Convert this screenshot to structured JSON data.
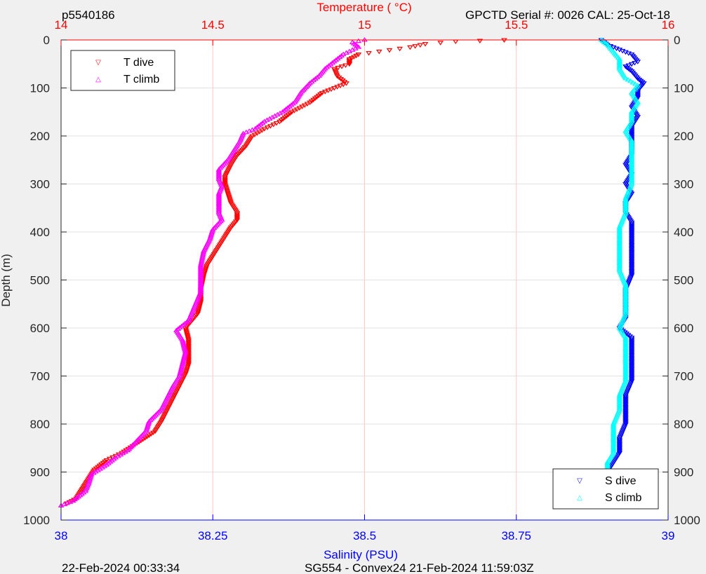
{
  "header": {
    "profile_id": "p5540186",
    "serial_info": "GPCTD Serial #: 0026 CAL: 25-Oct-18"
  },
  "footer": {
    "timestamp": "22-Feb-2024 00:33:34",
    "mission_info": "SG554 - Convex24 21-Feb-2024 11:59:03Z"
  },
  "colors": {
    "t_dive": "#ff0000",
    "t_climb": "#ff00ff",
    "s_dive": "#0000ff",
    "s_climb": "#00ffff",
    "temperature_axis": "#ff0000",
    "salinity_axis": "#0000ff",
    "grid": "#ffc8c8"
  },
  "chart_data": {
    "type": "scatter",
    "title": "",
    "ylabel": "Depth (m)",
    "y_reversed": true,
    "ylim": [
      0,
      1000
    ],
    "y_ticks": [
      0,
      100,
      200,
      300,
      400,
      500,
      600,
      700,
      800,
      900,
      1000
    ],
    "top_axis": {
      "label": "Temperature (    °C)",
      "lim": [
        14,
        16
      ],
      "ticks": [
        14,
        14.5,
        15,
        15.5,
        16
      ],
      "tick_labels": [
        "14",
        "14.5",
        "15",
        "15.5",
        "16"
      ]
    },
    "bottom_axis": {
      "label": "Salinity (PSU)",
      "lim": [
        38,
        39
      ],
      "ticks": [
        38,
        38.25,
        38.5,
        38.75,
        39
      ],
      "tick_labels": [
        "38",
        "38.25",
        "38.5",
        "38.75",
        "39"
      ]
    },
    "grid": true,
    "legend_temperature": {
      "placement": "top-left",
      "entries": [
        "T dive",
        "T climb"
      ]
    },
    "legend_salinity": {
      "placement": "bottom-right",
      "entries": [
        "S dive",
        "S climb"
      ]
    },
    "series": [
      {
        "name": "T dive",
        "axis": "temperature",
        "marker": "triangle-down",
        "points": [
          [
            15.46,
            0
          ],
          [
            15.3,
            3
          ],
          [
            15.2,
            8
          ],
          [
            15.15,
            15
          ],
          [
            14.98,
            30
          ],
          [
            14.95,
            40
          ],
          [
            14.95,
            50
          ],
          [
            14.9,
            60
          ],
          [
            14.91,
            75
          ],
          [
            14.94,
            90
          ],
          [
            14.9,
            100
          ],
          [
            14.86,
            110
          ],
          [
            14.82,
            130
          ],
          [
            14.76,
            150
          ],
          [
            14.72,
            170
          ],
          [
            14.67,
            185
          ],
          [
            14.63,
            200
          ],
          [
            14.61,
            220
          ],
          [
            14.58,
            240
          ],
          [
            14.56,
            260
          ],
          [
            14.54,
            285
          ],
          [
            14.54,
            300
          ],
          [
            14.55,
            320
          ],
          [
            14.56,
            340
          ],
          [
            14.58,
            360
          ],
          [
            14.58,
            375
          ],
          [
            14.56,
            390
          ],
          [
            14.54,
            410
          ],
          [
            14.51,
            440
          ],
          [
            14.48,
            470
          ],
          [
            14.47,
            490
          ],
          [
            14.46,
            520
          ],
          [
            14.46,
            545
          ],
          [
            14.45,
            570
          ],
          [
            14.41,
            600
          ],
          [
            14.42,
            625
          ],
          [
            14.42,
            655
          ],
          [
            14.42,
            675
          ],
          [
            14.41,
            695
          ],
          [
            14.39,
            720
          ],
          [
            14.37,
            745
          ],
          [
            14.35,
            770
          ],
          [
            14.33,
            795
          ],
          [
            14.31,
            815
          ],
          [
            14.25,
            840
          ],
          [
            14.2,
            860
          ],
          [
            14.15,
            875
          ],
          [
            14.11,
            895
          ],
          [
            14.09,
            915
          ],
          [
            14.07,
            935
          ],
          [
            14.05,
            955
          ],
          [
            14.02,
            965
          ]
        ]
      },
      {
        "name": "T climb",
        "axis": "temperature",
        "marker": "triangle-up",
        "points": [
          [
            15.0,
            0
          ],
          [
            14.96,
            5
          ],
          [
            14.98,
            15
          ],
          [
            14.93,
            30
          ],
          [
            14.9,
            45
          ],
          [
            14.87,
            60
          ],
          [
            14.85,
            75
          ],
          [
            14.82,
            90
          ],
          [
            14.79,
            110
          ],
          [
            14.77,
            130
          ],
          [
            14.73,
            150
          ],
          [
            14.67,
            170
          ],
          [
            14.64,
            185
          ],
          [
            14.6,
            195
          ],
          [
            14.59,
            210
          ],
          [
            14.57,
            230
          ],
          [
            14.55,
            250
          ],
          [
            14.52,
            270
          ],
          [
            14.52,
            290
          ],
          [
            14.53,
            305
          ],
          [
            14.52,
            320
          ],
          [
            14.52,
            345
          ],
          [
            14.52,
            360
          ],
          [
            14.53,
            375
          ],
          [
            14.5,
            395
          ],
          [
            14.49,
            415
          ],
          [
            14.47,
            440
          ],
          [
            14.46,
            470
          ],
          [
            14.46,
            500
          ],
          [
            14.46,
            525
          ],
          [
            14.44,
            555
          ],
          [
            14.42,
            585
          ],
          [
            14.38,
            605
          ],
          [
            14.4,
            625
          ],
          [
            14.41,
            650
          ],
          [
            14.4,
            675
          ],
          [
            14.39,
            700
          ],
          [
            14.37,
            720
          ],
          [
            14.35,
            745
          ],
          [
            14.33,
            770
          ],
          [
            14.29,
            795
          ],
          [
            14.28,
            815
          ],
          [
            14.25,
            835
          ],
          [
            14.22,
            855
          ],
          [
            14.18,
            870
          ],
          [
            14.15,
            885
          ],
          [
            14.1,
            905
          ],
          [
            14.09,
            925
          ],
          [
            14.08,
            940
          ],
          [
            14.04,
            960
          ],
          [
            14.0,
            970
          ]
        ]
      },
      {
        "name": "S dive",
        "axis": "salinity",
        "marker": "triangle-down",
        "points": [
          [
            38.89,
            0
          ],
          [
            38.9,
            10
          ],
          [
            38.92,
            20
          ],
          [
            38.94,
            30
          ],
          [
            38.95,
            45
          ],
          [
            38.93,
            55
          ],
          [
            38.94,
            65
          ],
          [
            38.95,
            80
          ],
          [
            38.96,
            90
          ],
          [
            38.95,
            105
          ],
          [
            38.95,
            120
          ],
          [
            38.94,
            140
          ],
          [
            38.95,
            160
          ],
          [
            38.94,
            180
          ],
          [
            38.94,
            200
          ],
          [
            38.94,
            220
          ],
          [
            38.94,
            240
          ],
          [
            38.93,
            260
          ],
          [
            38.94,
            280
          ],
          [
            38.93,
            300
          ],
          [
            38.94,
            320
          ],
          [
            38.93,
            340
          ],
          [
            38.93,
            360
          ],
          [
            38.94,
            380
          ],
          [
            38.94,
            400
          ],
          [
            38.94,
            430
          ],
          [
            38.94,
            460
          ],
          [
            38.94,
            490
          ],
          [
            38.93,
            520
          ],
          [
            38.93,
            550
          ],
          [
            38.93,
            580
          ],
          [
            38.92,
            600
          ],
          [
            38.94,
            620
          ],
          [
            38.94,
            650
          ],
          [
            38.94,
            680
          ],
          [
            38.94,
            710
          ],
          [
            38.93,
            740
          ],
          [
            38.93,
            770
          ],
          [
            38.93,
            800
          ],
          [
            38.92,
            830
          ],
          [
            38.92,
            860
          ],
          [
            38.91,
            880
          ],
          [
            38.9,
            900
          ],
          [
            38.9,
            920
          ],
          [
            38.9,
            940
          ],
          [
            38.9,
            960
          ]
        ]
      },
      {
        "name": "S climb",
        "axis": "salinity",
        "marker": "triangle-up",
        "points": [
          [
            38.89,
            0
          ],
          [
            38.9,
            10
          ],
          [
            38.91,
            25
          ],
          [
            38.92,
            40
          ],
          [
            38.92,
            60
          ],
          [
            38.93,
            80
          ],
          [
            38.95,
            95
          ],
          [
            38.94,
            110
          ],
          [
            38.95,
            130
          ],
          [
            38.94,
            150
          ],
          [
            38.94,
            170
          ],
          [
            38.93,
            190
          ],
          [
            38.94,
            210
          ],
          [
            38.94,
            240
          ],
          [
            38.94,
            270
          ],
          [
            38.94,
            300
          ],
          [
            38.93,
            330
          ],
          [
            38.93,
            360
          ],
          [
            38.92,
            390
          ],
          [
            38.92,
            420
          ],
          [
            38.92,
            450
          ],
          [
            38.92,
            480
          ],
          [
            38.93,
            510
          ],
          [
            38.93,
            540
          ],
          [
            38.93,
            570
          ],
          [
            38.92,
            600
          ],
          [
            38.93,
            620
          ],
          [
            38.93,
            650
          ],
          [
            38.93,
            680
          ],
          [
            38.93,
            710
          ],
          [
            38.92,
            740
          ],
          [
            38.92,
            770
          ],
          [
            38.91,
            800
          ],
          [
            38.91,
            830
          ],
          [
            38.91,
            860
          ],
          [
            38.9,
            880
          ],
          [
            38.9,
            900
          ],
          [
            38.89,
            920
          ],
          [
            38.89,
            940
          ],
          [
            38.89,
            955
          ],
          [
            38.89,
            968
          ]
        ]
      }
    ]
  }
}
